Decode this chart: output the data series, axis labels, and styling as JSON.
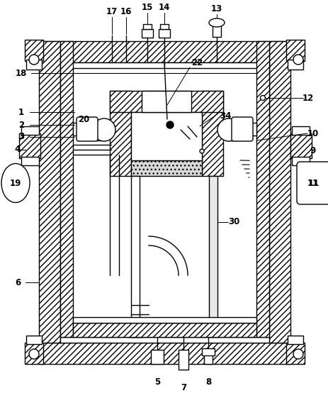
{
  "bg_color": "#ffffff",
  "fig_width": 4.64,
  "fig_height": 5.68,
  "dpi": 100
}
